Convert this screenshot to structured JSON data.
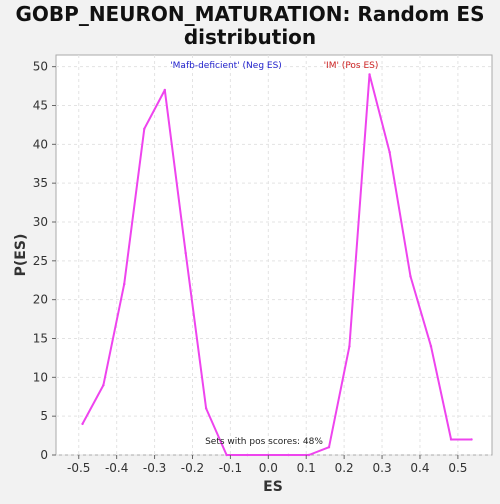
{
  "chart_data": {
    "type": "line",
    "title_lines": [
      "GOBP_NEURON_MATURATION: Random ES",
      "distribution"
    ],
    "xlabel": "ES",
    "ylabel": "P(ES)",
    "xlim": [
      -0.56,
      0.59
    ],
    "ylim": [
      0,
      51.5
    ],
    "x_ticks": [
      -0.5,
      -0.4,
      -0.3,
      -0.2,
      -0.1,
      0.0,
      0.1,
      0.2,
      0.3,
      0.4,
      0.5
    ],
    "x_tick_labels": [
      "-0.5",
      "-0.4",
      "-0.3",
      "-0.2",
      "-0.1",
      "0.0",
      "0.1",
      "0.2",
      "0.3",
      "0.4",
      "0.5"
    ],
    "y_ticks": [
      0,
      5,
      10,
      15,
      20,
      25,
      30,
      35,
      40,
      45,
      50
    ],
    "y_tick_labels": [
      "0",
      "5",
      "10",
      "15",
      "20",
      "25",
      "30",
      "35",
      "40",
      "45",
      "50"
    ],
    "grid": true,
    "series": [
      {
        "color": "#ee44ee",
        "x": [
          -0.49,
          -0.435,
          -0.38,
          -0.327,
          -0.273,
          -0.218,
          -0.164,
          -0.11,
          -0.055,
          0.0,
          0.053,
          0.107,
          0.16,
          0.214,
          0.267,
          0.32,
          0.375,
          0.429,
          0.482,
          0.536
        ],
        "y": [
          4,
          9,
          22,
          42,
          47,
          26,
          6,
          0,
          0,
          0,
          0,
          0,
          1,
          14,
          49,
          39,
          23,
          14,
          2,
          2
        ]
      }
    ],
    "annotations": {
      "neg_label": "'Mafb-deficient' (Neg ES)",
      "pos_label": "'IM' (Pos ES)",
      "pos_scores": "Sets with pos scores: 48%"
    },
    "colors": {
      "neg_label": "#2222cc",
      "pos_label": "#cc2222",
      "line": "#ee44ee"
    }
  }
}
